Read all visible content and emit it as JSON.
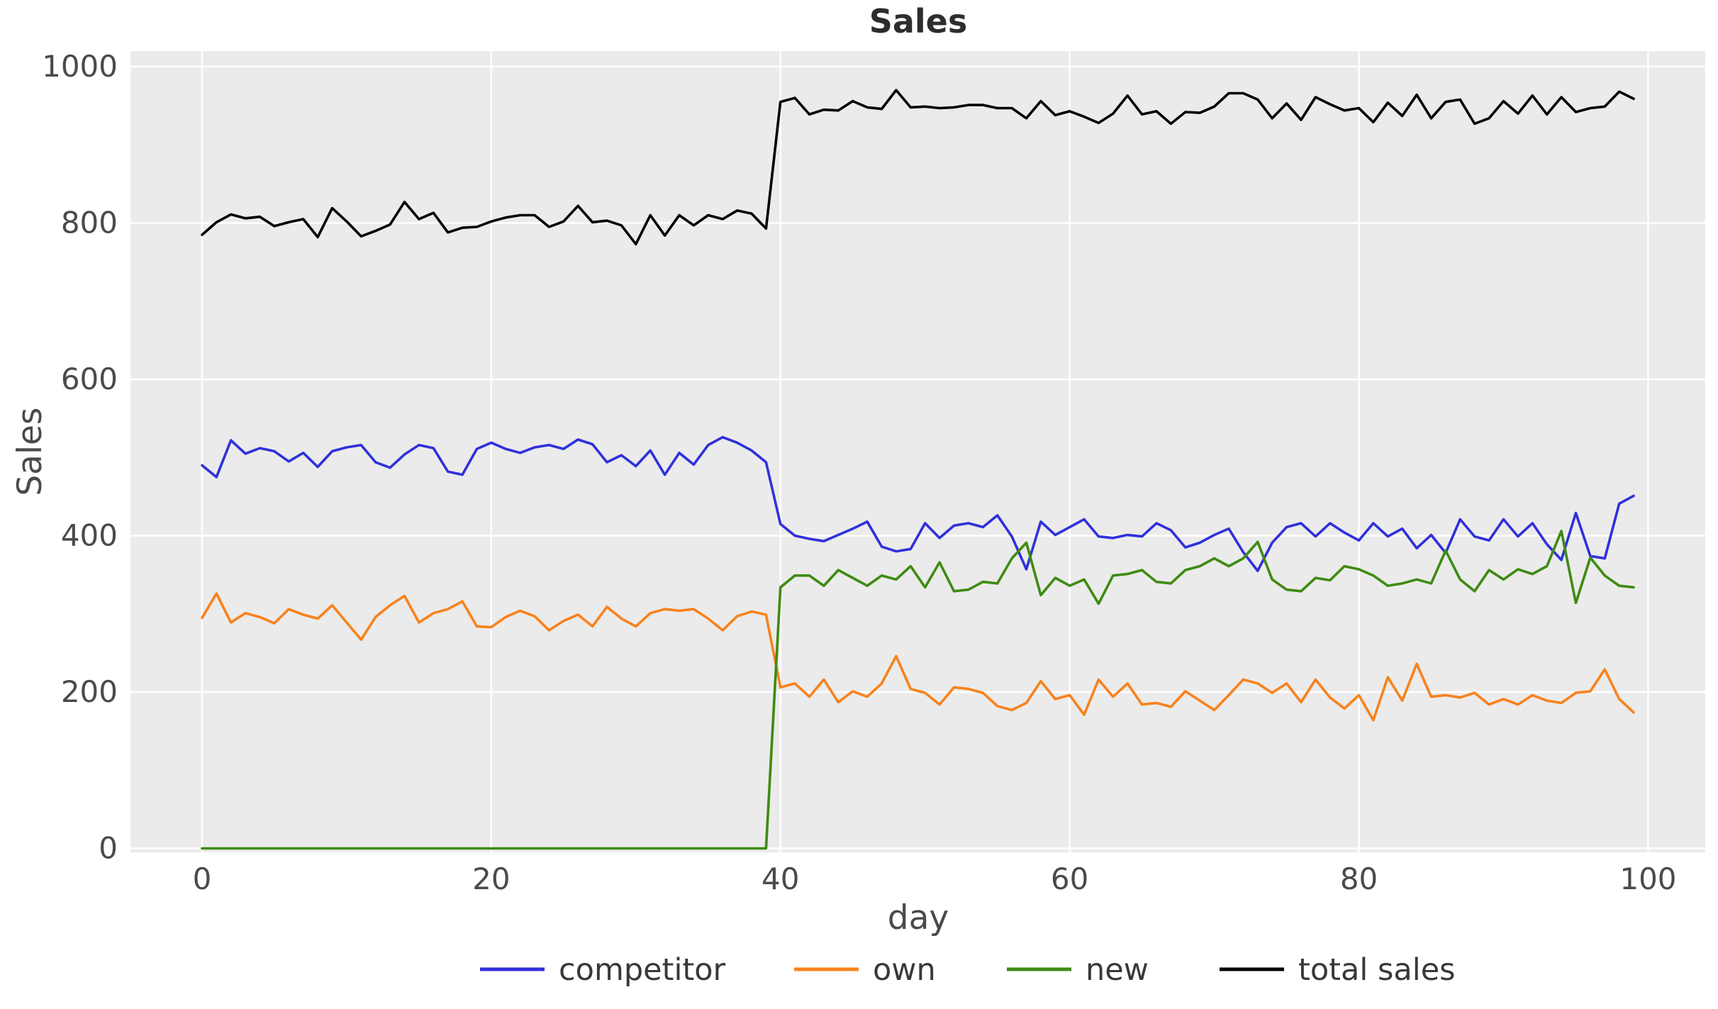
{
  "figure": {
    "background": "#ffffff",
    "plot_background": "#ebebeb",
    "grid_color": "#ffffff",
    "text_color": "#4a4a4a"
  },
  "chart_data": {
    "type": "line",
    "title": "Sales",
    "xlabel": "day",
    "ylabel": "Sales",
    "xlim": [
      -4.95,
      103.95
    ],
    "ylim": [
      -5,
      1020
    ],
    "xticks": [
      0,
      20,
      40,
      60,
      80,
      100
    ],
    "yticks": [
      0,
      200,
      400,
      600,
      800,
      1000
    ],
    "grid": true,
    "legend_position": "bottom-center",
    "x": [
      0,
      1,
      2,
      3,
      4,
      5,
      6,
      7,
      8,
      9,
      10,
      11,
      12,
      13,
      14,
      15,
      16,
      17,
      18,
      19,
      20,
      21,
      22,
      23,
      24,
      25,
      26,
      27,
      28,
      29,
      30,
      31,
      32,
      33,
      34,
      35,
      36,
      37,
      38,
      39,
      40,
      41,
      42,
      43,
      44,
      45,
      46,
      47,
      48,
      49,
      50,
      51,
      52,
      53,
      54,
      55,
      56,
      57,
      58,
      59,
      60,
      61,
      62,
      63,
      64,
      65,
      66,
      67,
      68,
      69,
      70,
      71,
      72,
      73,
      74,
      75,
      76,
      77,
      78,
      79,
      80,
      81,
      82,
      83,
      84,
      85,
      86,
      87,
      88,
      89,
      90,
      91,
      92,
      93,
      94,
      95,
      96,
      97,
      98,
      99
    ],
    "series": [
      {
        "name": "competitor",
        "color": "#3030dc",
        "values": [
          490,
          475,
          522,
          505,
          512,
          508,
          495,
          506,
          488,
          508,
          513,
          516,
          494,
          487,
          504,
          516,
          512,
          482,
          478,
          511,
          519,
          511,
          506,
          513,
          516,
          511,
          523,
          517,
          494,
          503,
          489,
          509,
          478,
          506,
          491,
          516,
          526,
          519,
          509,
          494,
          415,
          400,
          396,
          393,
          401,
          409,
          418,
          386,
          380,
          383,
          416,
          397,
          413,
          416,
          411,
          426,
          399,
          357,
          418,
          401,
          411,
          421,
          399,
          397,
          401,
          399,
          416,
          407,
          385,
          391,
          401,
          409,
          379,
          355,
          391,
          411,
          416,
          399,
          416,
          404,
          394,
          416,
          399,
          409,
          384,
          401,
          378,
          421,
          399,
          394,
          421,
          399,
          416,
          389,
          369,
          429,
          374,
          371,
          441,
          451
        ]
      },
      {
        "name": "own",
        "color": "#f8821c",
        "values": [
          295,
          326,
          289,
          301,
          296,
          288,
          306,
          299,
          294,
          311,
          289,
          267,
          296,
          311,
          323,
          289,
          301,
          306,
          316,
          284,
          283,
          296,
          304,
          297,
          279,
          291,
          299,
          284,
          309,
          294,
          284,
          301,
          306,
          304,
          306,
          294,
          279,
          297,
          303,
          299,
          206,
          211,
          194,
          216,
          187,
          201,
          194,
          211,
          246,
          204,
          199,
          184,
          206,
          204,
          199,
          182,
          177,
          186,
          214,
          191,
          196,
          171,
          216,
          194,
          211,
          184,
          186,
          181,
          201,
          189,
          177,
          196,
          216,
          211,
          199,
          211,
          187,
          216,
          193,
          179,
          196,
          164,
          219,
          189,
          236,
          194,
          196,
          193,
          199,
          184,
          191,
          184,
          196,
          189,
          186,
          199,
          201,
          229,
          191,
          174
        ]
      },
      {
        "name": "new",
        "color": "#3e8b12",
        "values": [
          0,
          0,
          0,
          0,
          0,
          0,
          0,
          0,
          0,
          0,
          0,
          0,
          0,
          0,
          0,
          0,
          0,
          0,
          0,
          0,
          0,
          0,
          0,
          0,
          0,
          0,
          0,
          0,
          0,
          0,
          0,
          0,
          0,
          0,
          0,
          0,
          0,
          0,
          0,
          0,
          334,
          349,
          349,
          336,
          356,
          346,
          336,
          349,
          344,
          361,
          334,
          366,
          329,
          331,
          341,
          339,
          371,
          391,
          324,
          346,
          336,
          344,
          313,
          349,
          351,
          356,
          341,
          339,
          356,
          361,
          371,
          361,
          371,
          392,
          344,
          331,
          329,
          346,
          343,
          361,
          357,
          349,
          336,
          339,
          344,
          339,
          381,
          344,
          329,
          356,
          344,
          357,
          351,
          361,
          406,
          314,
          372,
          349,
          336,
          334
        ]
      },
      {
        "name": "total sales",
        "color": "#000000",
        "values": [
          785,
          801,
          811,
          806,
          808,
          796,
          801,
          805,
          782,
          819,
          802,
          783,
          790,
          798,
          827,
          805,
          813,
          788,
          794,
          795,
          802,
          807,
          810,
          810,
          795,
          802,
          822,
          801,
          803,
          797,
          773,
          810,
          784,
          810,
          797,
          810,
          805,
          816,
          812,
          793,
          955,
          960,
          939,
          945,
          944,
          956,
          948,
          946,
          970,
          948,
          949,
          947,
          948,
          951,
          951,
          947,
          947,
          934,
          956,
          938,
          943,
          936,
          928,
          940,
          963,
          939,
          943,
          927,
          942,
          941,
          949,
          966,
          966,
          958,
          934,
          953,
          932,
          961,
          952,
          944,
          947,
          929,
          954,
          937,
          964,
          934,
          955,
          958,
          927,
          934,
          956,
          940,
          963,
          939,
          961,
          942,
          947,
          949,
          968,
          959
        ]
      }
    ]
  }
}
